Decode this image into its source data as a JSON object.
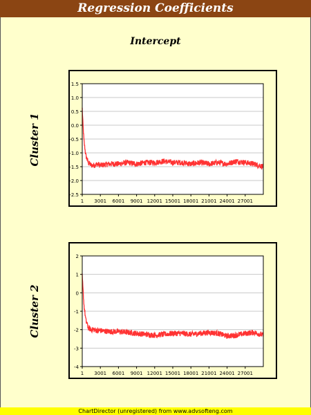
{
  "title": "Regression Coefficients",
  "subtitle": "Intercept",
  "footer": "ChartDirector (unregistered) from www.advsofteng.com",
  "colors": {
    "line": "#ff3333",
    "title_bg": "#8b4513",
    "background": "#ffffcc",
    "footer_bg": "#ffff00"
  },
  "chart_data": [
    {
      "type": "line",
      "title": "Cluster 1",
      "xlabel": "",
      "ylabel": "",
      "xlim": [
        1,
        30000
      ],
      "xticks": [
        1,
        3001,
        6001,
        9001,
        12001,
        15001,
        18001,
        21001,
        24001,
        27001
      ],
      "xtick_labels": [
        "1",
        "3001",
        "6001",
        "9001",
        "12001",
        "15001",
        "18001",
        "21001",
        "24001",
        "27001"
      ],
      "ylim": [
        -2.5,
        1.5
      ],
      "yticks": [
        -2.5,
        -2.0,
        -1.5,
        -1.0,
        -0.5,
        0.0,
        0.5,
        1.0,
        1.5
      ],
      "ytick_labels": [
        "-2.5",
        "-2.0",
        "-1.5",
        "-1.0",
        "-0.5",
        "0.0",
        "0.5",
        "1.0",
        "1.5"
      ],
      "grid": true,
      "series": [
        {
          "x": [
            1,
            100,
            300,
            600,
            1000,
            1500,
            2000,
            2500,
            3001,
            4500,
            6001,
            7500,
            9001,
            10500,
            12001,
            13500,
            15001,
            16500,
            18001,
            19500,
            21001,
            22500,
            24001,
            25500,
            27001,
            28500,
            30000
          ],
          "values": [
            0.6,
            0.1,
            -0.6,
            -1.1,
            -1.35,
            -1.45,
            -1.45,
            -1.4,
            -1.45,
            -1.4,
            -1.4,
            -1.35,
            -1.4,
            -1.35,
            -1.35,
            -1.3,
            -1.35,
            -1.35,
            -1.4,
            -1.35,
            -1.4,
            -1.35,
            -1.4,
            -1.3,
            -1.35,
            -1.4,
            -1.5
          ]
        }
      ]
    },
    {
      "type": "line",
      "title": "Cluster 2",
      "xlabel": "",
      "ylabel": "",
      "xlim": [
        1,
        30000
      ],
      "xticks": [
        1,
        3001,
        6001,
        9001,
        12001,
        15001,
        18001,
        21001,
        24001,
        27001
      ],
      "xtick_labels": [
        "1",
        "3001",
        "6001",
        "9001",
        "12001",
        "15001",
        "18001",
        "21001",
        "24001",
        "27001"
      ],
      "ylim": [
        -4,
        2
      ],
      "yticks": [
        -4,
        -3,
        -2,
        -1,
        0,
        1,
        2
      ],
      "ytick_labels": [
        "-4",
        "-3",
        "-2",
        "-1",
        "0",
        "1",
        "2"
      ],
      "grid": true,
      "series": [
        {
          "x": [
            1,
            100,
            300,
            600,
            1000,
            1500,
            2000,
            2500,
            3001,
            4500,
            6001,
            7500,
            9001,
            10500,
            12001,
            13500,
            15001,
            16500,
            18001,
            19500,
            21001,
            22500,
            24001,
            25500,
            27001,
            28500,
            30000
          ],
          "values": [
            0.9,
            0.3,
            -0.7,
            -1.5,
            -1.9,
            -2.0,
            -2.0,
            -2.05,
            -2.05,
            -2.1,
            -2.1,
            -2.15,
            -2.2,
            -2.25,
            -2.3,
            -2.25,
            -2.2,
            -2.2,
            -2.25,
            -2.2,
            -2.15,
            -2.2,
            -2.35,
            -2.3,
            -2.2,
            -2.15,
            -2.3
          ]
        }
      ]
    }
  ]
}
